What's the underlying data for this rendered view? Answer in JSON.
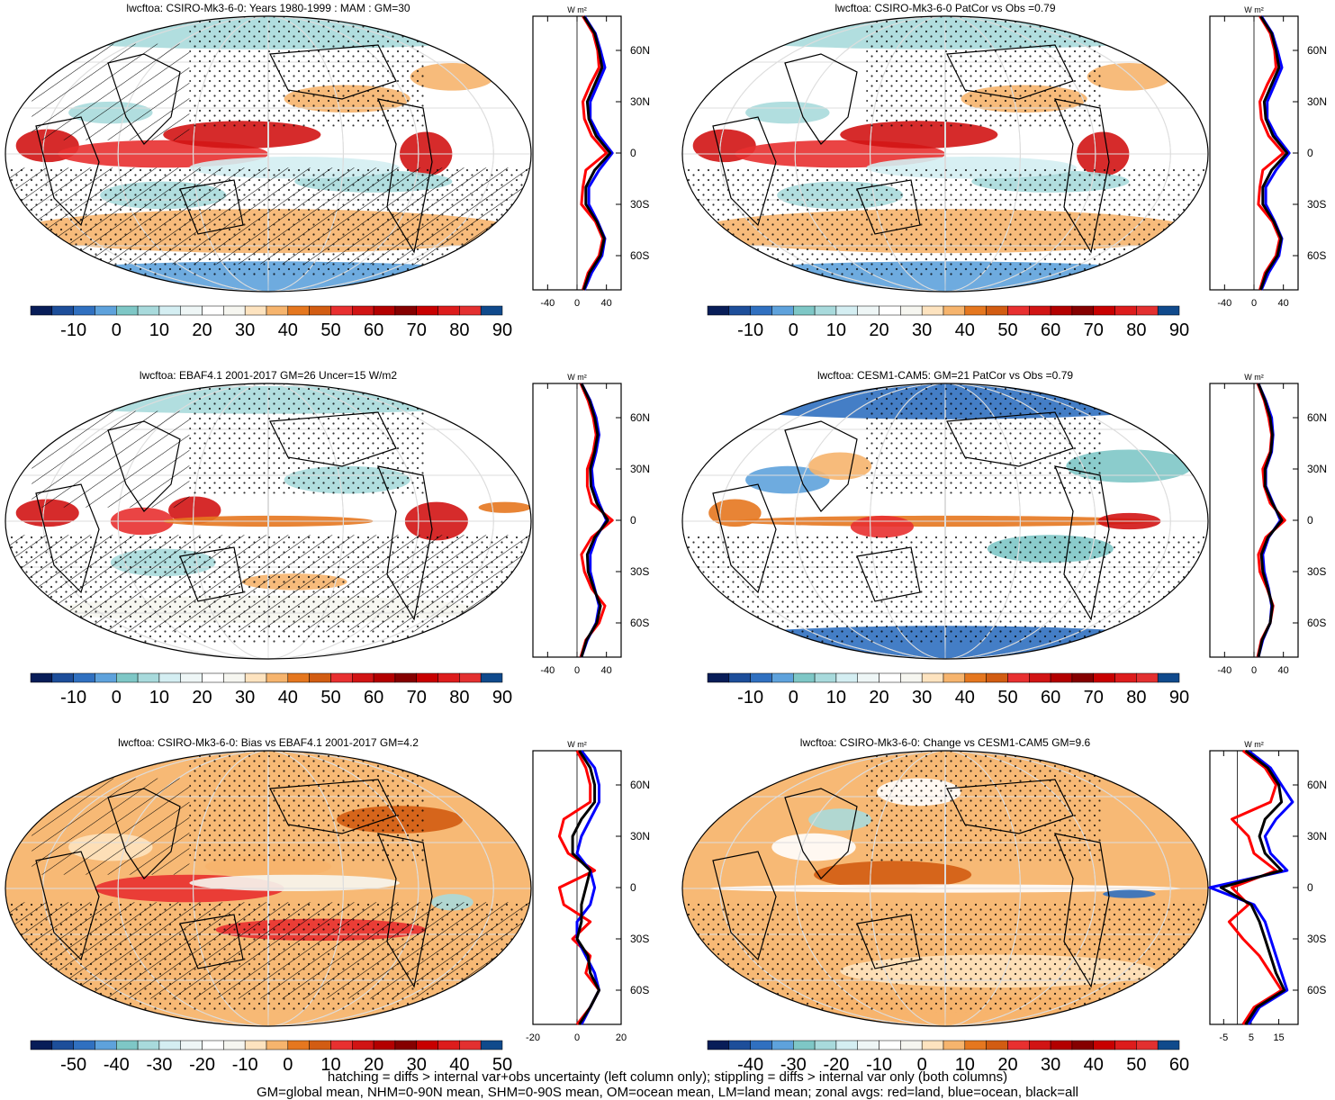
{
  "palette": [
    "#081d58",
    "#1d4e9a",
    "#3070c0",
    "#5ea2dc",
    "#7ec7c6",
    "#a8dadc",
    "#d4eef2",
    "#eef6f6",
    "#ffffff",
    "#f6f6f0",
    "#fde3bf",
    "#f6b46d",
    "#e5771f",
    "#d25c12",
    "#e83030",
    "#d11414",
    "#b30000",
    "#850000",
    "#c80000",
    "#dd1c1c",
    "#e33030",
    "#104a8c"
  ],
  "panels": [
    {
      "title": "lwcftoa: CSIRO-Mk3-6-0: Years 1980-1999 : MAM : GM=30",
      "colorbar_labels": [
        "-10",
        "0",
        "10",
        "20",
        "30",
        "40",
        "50",
        "60",
        "70",
        "80",
        "90"
      ],
      "profile_xticks": [
        "-40",
        "0",
        "40"
      ],
      "profile_unit": "W m²",
      "lat_labels": [
        "60N",
        "30N",
        "0",
        "30S",
        "60S"
      ],
      "hatching": true,
      "scheme": "clim"
    },
    {
      "title": "lwcftoa: CSIRO-Mk3-6-0 PatCor vs Obs =0.79",
      "colorbar_labels": [
        "-10",
        "0",
        "10",
        "20",
        "30",
        "40",
        "50",
        "60",
        "70",
        "80",
        "90"
      ],
      "profile_xticks": [
        "-40",
        "0",
        "40"
      ],
      "profile_unit": "W m²",
      "lat_labels": [
        "60N",
        "30N",
        "0",
        "30S",
        "60S"
      ],
      "hatching": false,
      "scheme": "clim"
    },
    {
      "title": "lwcftoa: EBAF4.1 2001-2017 GM=26 Uncer=15 W/m2",
      "colorbar_labels": [
        "-10",
        "0",
        "10",
        "20",
        "30",
        "40",
        "50",
        "60",
        "70",
        "80",
        "90"
      ],
      "profile_xticks": [
        "-40",
        "0",
        "40"
      ],
      "profile_unit": "W m²",
      "lat_labels": [
        "60N",
        "30N",
        "0",
        "30S",
        "60S"
      ],
      "hatching": true,
      "scheme": "obs"
    },
    {
      "title": "lwcftoa: CESM1-CAM5: GM=21 PatCor vs Obs =0.79",
      "colorbar_labels": [
        "-10",
        "0",
        "10",
        "20",
        "30",
        "40",
        "50",
        "60",
        "70",
        "80",
        "90"
      ],
      "profile_xticks": [
        "-40",
        "0",
        "40"
      ],
      "profile_unit": "W m²",
      "lat_labels": [
        "60N",
        "30N",
        "0",
        "30S",
        "60S"
      ],
      "hatching": false,
      "scheme": "cesm"
    },
    {
      "title": "lwcftoa: CSIRO-Mk3-6-0: Bias vs EBAF4.1 2001-2017 GM=4.2",
      "colorbar_labels": [
        "-50",
        "-40",
        "-30",
        "-20",
        "-10",
        "0",
        "10",
        "20",
        "30",
        "40",
        "50"
      ],
      "profile_xticks": [
        "-20",
        "0",
        "20"
      ],
      "profile_unit": "W m²",
      "lat_labels": [
        "60N",
        "30N",
        "0",
        "30S",
        "60S"
      ],
      "hatching": true,
      "scheme": "bias"
    },
    {
      "title": "lwcftoa: CSIRO-Mk3-6-0: Change vs CESM1-CAM5 GM=9.6",
      "colorbar_labels": [
        "-40",
        "-30",
        "-20",
        "-10",
        "0",
        "10",
        "20",
        "30",
        "40",
        "50",
        "60"
      ],
      "profile_xticks": [
        "-5",
        "5",
        "15"
      ],
      "profile_unit": "W m²",
      "lat_labels": [
        "60N",
        "30N",
        "0",
        "30S",
        "60S"
      ],
      "hatching": false,
      "scheme": "change"
    }
  ],
  "chart_data": [
    {
      "type": "heatmap",
      "title": "lwcftoa: CSIRO-Mk3-6-0: Years 1980-1999 : MAM : GM=30",
      "colorbar_range": [
        -15,
        95
      ],
      "zonal_profile": {
        "lat": [
          80,
          70,
          60,
          50,
          40,
          30,
          20,
          10,
          0,
          -10,
          -20,
          -30,
          -40,
          -50,
          -60,
          -70,
          -80
        ],
        "series": [
          {
            "name": "land",
            "values": [
              8,
              22,
              28,
              30,
              18,
              8,
              10,
              20,
              40,
              12,
              8,
              6,
              25,
              35,
              30,
              15,
              8
            ]
          },
          {
            "name": "ocean",
            "values": [
              10,
              25,
              32,
              38,
              28,
              18,
              18,
              30,
              48,
              30,
              16,
              16,
              28,
              38,
              34,
              20,
              10
            ]
          },
          {
            "name": "all",
            "values": [
              9,
              24,
              30,
              34,
              24,
              14,
              16,
              26,
              45,
              24,
              12,
              12,
              27,
              37,
              32,
              17,
              9
            ]
          }
        ]
      }
    },
    {
      "type": "heatmap",
      "title": "lwcftoa: CSIRO-Mk3-6-0 PatCor vs Obs =0.79",
      "colorbar_range": [
        -15,
        95
      ],
      "zonal_profile": {
        "lat": [
          80,
          70,
          60,
          50,
          40,
          30,
          20,
          10,
          0,
          -10,
          -20,
          -30,
          -40,
          -50,
          -60,
          -70,
          -80
        ],
        "series": [
          {
            "name": "land",
            "values": [
              8,
              22,
              28,
              30,
              18,
              8,
              10,
              20,
              40,
              12,
              8,
              6,
              25,
              35,
              30,
              15,
              8
            ]
          },
          {
            "name": "ocean",
            "values": [
              10,
              25,
              32,
              38,
              28,
              18,
              18,
              30,
              48,
              30,
              16,
              16,
              28,
              38,
              34,
              20,
              10
            ]
          },
          {
            "name": "all",
            "values": [
              9,
              24,
              30,
              34,
              24,
              14,
              16,
              26,
              45,
              24,
              12,
              12,
              27,
              37,
              32,
              17,
              9
            ]
          }
        ]
      }
    },
    {
      "type": "heatmap",
      "title": "lwcftoa: EBAF4.1 2001-2017 GM=26 Uncer=15 W/m2",
      "colorbar_range": [
        -15,
        95
      ],
      "zonal_profile": {
        "lat": [
          80,
          70,
          60,
          50,
          40,
          30,
          20,
          10,
          0,
          -10,
          -20,
          -30,
          -40,
          -50,
          -60,
          -70,
          -80
        ],
        "series": [
          {
            "name": "land",
            "values": [
              5,
              15,
              22,
              26,
              22,
              14,
              14,
              20,
              48,
              20,
              6,
              10,
              20,
              38,
              30,
              12,
              5
            ]
          },
          {
            "name": "ocean",
            "values": [
              6,
              18,
              26,
              30,
              26,
              20,
              22,
              30,
              40,
              26,
              18,
              18,
              24,
              30,
              26,
              14,
              6
            ]
          },
          {
            "name": "all",
            "values": [
              6,
              17,
              24,
              28,
              24,
              18,
              19,
              27,
              42,
              24,
              14,
              15,
              23,
              32,
              27,
              13,
              6
            ]
          }
        ]
      }
    },
    {
      "type": "heatmap",
      "title": "lwcftoa: CESM1-CAM5: GM=21 PatCor vs Obs =0.79",
      "colorbar_range": [
        -15,
        95
      ],
      "zonal_profile": {
        "lat": [
          80,
          70,
          60,
          50,
          40,
          30,
          20,
          10,
          0,
          -10,
          -20,
          -30,
          -40,
          -50,
          -60,
          -70,
          -80
        ],
        "series": [
          {
            "name": "land",
            "values": [
              5,
              14,
              20,
              24,
              22,
              12,
              14,
              22,
              42,
              16,
              6,
              8,
              18,
              26,
              22,
              10,
              5
            ]
          },
          {
            "name": "ocean",
            "values": [
              6,
              16,
              24,
              26,
              24,
              16,
              16,
              26,
              36,
              20,
              12,
              14,
              20,
              24,
              22,
              12,
              6
            ]
          },
          {
            "name": "all",
            "values": [
              6,
              15,
              22,
              25,
              23,
              15,
              15,
              25,
              38,
              19,
              10,
              12,
              19,
              25,
              22,
              11,
              6
            ]
          }
        ]
      }
    },
    {
      "type": "heatmap",
      "title": "lwcftoa: CSIRO-Mk3-6-0: Bias vs EBAF4.1 2001-2017 GM=4.2",
      "colorbar_range": [
        -55,
        55
      ],
      "zonal_profile": {
        "lat": [
          80,
          70,
          60,
          50,
          40,
          30,
          20,
          10,
          0,
          -10,
          -20,
          -30,
          -40,
          -50,
          -60,
          -70,
          -80
        ],
        "series": [
          {
            "name": "land",
            "values": [
              0,
              4,
              6,
              6,
              -6,
              -8,
              -4,
              8,
              -8,
              -6,
              6,
              -2,
              6,
              4,
              10,
              6,
              0
            ]
          },
          {
            "name": "ocean",
            "values": [
              2,
              8,
              10,
              10,
              6,
              2,
              0,
              6,
              8,
              6,
              0,
              0,
              4,
              8,
              10,
              6,
              2
            ]
          },
          {
            "name": "all",
            "values": [
              1,
              6,
              8,
              8,
              2,
              -2,
              -2,
              6,
              4,
              2,
              2,
              0,
              5,
              6,
              10,
              6,
              1
            ]
          }
        ]
      }
    },
    {
      "type": "heatmap",
      "title": "lwcftoa: CSIRO-Mk3-6-0: Change vs CESM1-CAM5 GM=9.6",
      "colorbar_range": [
        -45,
        65
      ],
      "zonal_profile": {
        "lat": [
          80,
          70,
          60,
          50,
          40,
          30,
          20,
          10,
          0,
          -10,
          -20,
          -30,
          -40,
          -50,
          -60,
          -70,
          -80
        ],
        "series": [
          {
            "name": "land",
            "values": [
              2,
              10,
              14,
              12,
              -2,
              4,
              6,
              14,
              -2,
              4,
              -3,
              2,
              8,
              12,
              16,
              6,
              2
            ]
          },
          {
            "name": "ocean",
            "values": [
              4,
              12,
              16,
              20,
              14,
              10,
              12,
              18,
              -10,
              6,
              10,
              12,
              14,
              16,
              18,
              8,
              4
            ]
          },
          {
            "name": "all",
            "values": [
              3,
              11,
              15,
              16,
              10,
              8,
              10,
              16,
              -6,
              5,
              8,
              10,
              12,
              14,
              17,
              7,
              3
            ]
          }
        ]
      }
    }
  ],
  "footer": {
    "line1": "hatching = diffs > internal var+obs uncertainty (left column only); stippling = diffs > internal var only (both columns)",
    "line2": "GM=global mean, NHM=0-90N mean, SHM=0-90S mean, OM=ocean mean, LM=land mean; zonal avgs: red=land, blue=ocean, black=all"
  }
}
